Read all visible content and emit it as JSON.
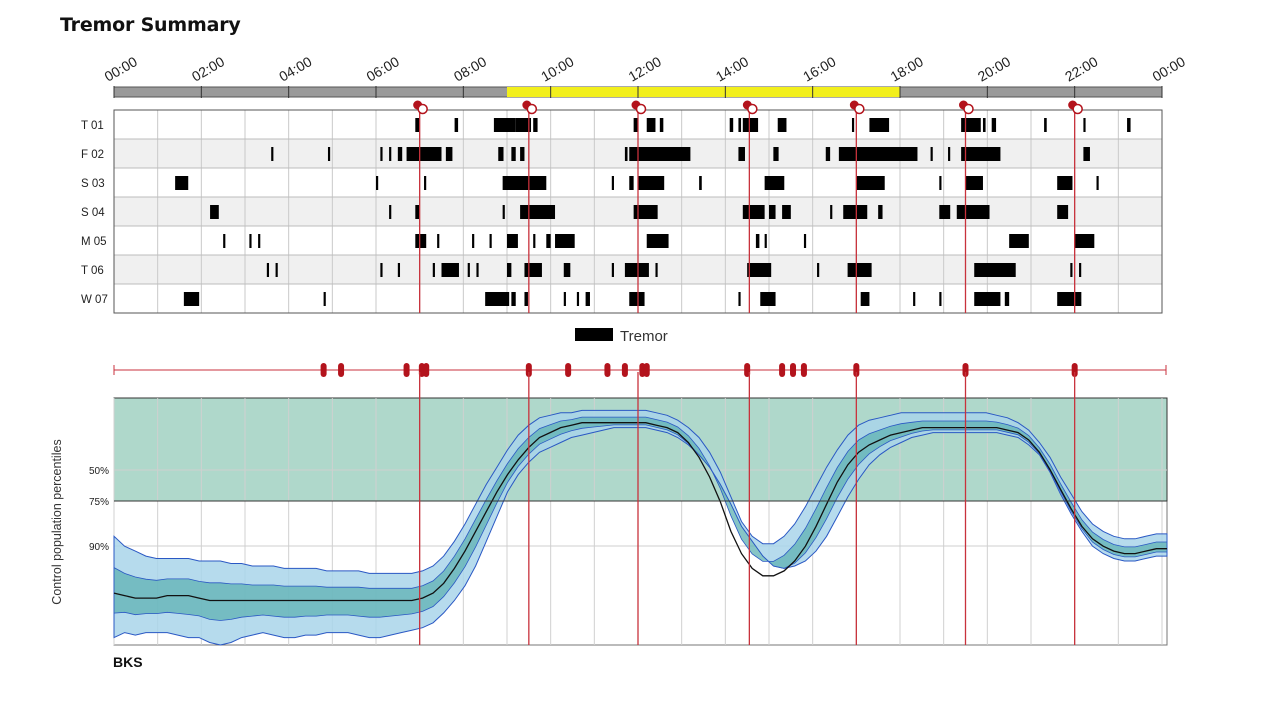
{
  "page": {
    "title": "Tremor Summary"
  },
  "colors": {
    "tremor": "#000000",
    "event_line": "#c8323c",
    "event_marker": "#b3131c",
    "daytime_bar": "#f2ef1c",
    "night_bar": "#9a9a9a",
    "row_alt": "#f0f0f0",
    "control_band": "#6db8a0",
    "patient_outer": "#a9d5ea",
    "patient_inner": "#5fb1b3",
    "patient_edge": "#2a58c4",
    "median_line": "#111111"
  },
  "chart_data": [
    {
      "type": "event-timeline",
      "title": "Tremor Summary",
      "time_ticks": [
        "00:00",
        "02:00",
        "04:00",
        "06:00",
        "08:00",
        "10:00",
        "12:00",
        "14:00",
        "16:00",
        "18:00",
        "20:00",
        "22:00",
        "00:00"
      ],
      "day_period": [
        9,
        18
      ],
      "dose_times": [
        7.0,
        9.5,
        12.0,
        14.55,
        17.0,
        19.5,
        22.0
      ],
      "legend": "Tremor",
      "rows": [
        {
          "label": "T 01",
          "events": [
            [
              6.9,
              0.1
            ],
            [
              7.8,
              0.08
            ],
            [
              8.7,
              0.5
            ],
            [
              9.2,
              0.35
            ],
            [
              9.6,
              0.1
            ],
            [
              11.9,
              0.1
            ],
            [
              12.2,
              0.2
            ],
            [
              12.5,
              0.08
            ],
            [
              14.1,
              0.08
            ],
            [
              14.3,
              0.06
            ],
            [
              14.4,
              0.35
            ],
            [
              15.2,
              0.2
            ],
            [
              16.9,
              0.05
            ],
            [
              17.3,
              0.45
            ],
            [
              19.4,
              0.45
            ],
            [
              19.9,
              0.06
            ],
            [
              20.1,
              0.1
            ],
            [
              21.3,
              0.06
            ],
            [
              22.2,
              0.05
            ],
            [
              23.2,
              0.08
            ]
          ]
        },
        {
          "label": "F 02",
          "events": [
            [
              3.6,
              0.05
            ],
            [
              4.9,
              0.05
            ],
            [
              6.1,
              0.05
            ],
            [
              6.3,
              0.05
            ],
            [
              6.5,
              0.1
            ],
            [
              6.7,
              0.8
            ],
            [
              7.6,
              0.15
            ],
            [
              8.8,
              0.12
            ],
            [
              9.1,
              0.1
            ],
            [
              9.3,
              0.1
            ],
            [
              11.7,
              0.06
            ],
            [
              11.8,
              1.4
            ],
            [
              14.3,
              0.15
            ],
            [
              15.1,
              0.12
            ],
            [
              16.3,
              0.1
            ],
            [
              16.6,
              1.75
            ],
            [
              18.3,
              0.1
            ],
            [
              18.7,
              0.05
            ],
            [
              19.1,
              0.05
            ],
            [
              19.4,
              0.9
            ],
            [
              22.2,
              0.15
            ]
          ]
        },
        {
          "label": "S 03",
          "events": [
            [
              1.4,
              0.3
            ],
            [
              6.0,
              0.05
            ],
            [
              7.1,
              0.05
            ],
            [
              8.9,
              1.0
            ],
            [
              11.4,
              0.05
            ],
            [
              11.8,
              0.1
            ],
            [
              12.0,
              0.6
            ],
            [
              13.4,
              0.06
            ],
            [
              14.9,
              0.45
            ],
            [
              17.0,
              0.65
            ],
            [
              18.9,
              0.05
            ],
            [
              19.5,
              0.4
            ],
            [
              21.6,
              0.35
            ],
            [
              22.5,
              0.05
            ]
          ]
        },
        {
          "label": "S 04",
          "events": [
            [
              2.2,
              0.2
            ],
            [
              6.3,
              0.05
            ],
            [
              6.9,
              0.1
            ],
            [
              8.9,
              0.05
            ],
            [
              9.3,
              0.8
            ],
            [
              11.9,
              0.55
            ],
            [
              14.4,
              0.5
            ],
            [
              15.0,
              0.15
            ],
            [
              15.3,
              0.2
            ],
            [
              16.4,
              0.05
            ],
            [
              16.7,
              0.55
            ],
            [
              17.5,
              0.1
            ],
            [
              18.9,
              0.25
            ],
            [
              19.3,
              0.75
            ],
            [
              21.6,
              0.25
            ]
          ]
        },
        {
          "label": "M 05",
          "events": [
            [
              2.5,
              0.05
            ],
            [
              3.1,
              0.05
            ],
            [
              3.3,
              0.05
            ],
            [
              6.9,
              0.25
            ],
            [
              7.4,
              0.05
            ],
            [
              8.2,
              0.05
            ],
            [
              8.6,
              0.05
            ],
            [
              9.0,
              0.25
            ],
            [
              9.6,
              0.05
            ],
            [
              9.9,
              0.1
            ],
            [
              10.1,
              0.45
            ],
            [
              12.2,
              0.5
            ],
            [
              14.7,
              0.08
            ],
            [
              14.9,
              0.05
            ],
            [
              15.8,
              0.05
            ],
            [
              20.5,
              0.45
            ],
            [
              22.0,
              0.45
            ]
          ]
        },
        {
          "label": "T 06",
          "events": [
            [
              3.5,
              0.05
            ],
            [
              3.7,
              0.05
            ],
            [
              6.1,
              0.05
            ],
            [
              6.5,
              0.05
            ],
            [
              7.3,
              0.05
            ],
            [
              7.5,
              0.4
            ],
            [
              8.1,
              0.05
            ],
            [
              8.3,
              0.05
            ],
            [
              9.0,
              0.1
            ],
            [
              9.4,
              0.4
            ],
            [
              10.3,
              0.15
            ],
            [
              11.4,
              0.05
            ],
            [
              11.7,
              0.55
            ],
            [
              12.4,
              0.05
            ],
            [
              14.5,
              0.55
            ],
            [
              16.1,
              0.05
            ],
            [
              16.8,
              0.55
            ],
            [
              19.7,
              0.95
            ],
            [
              21.9,
              0.05
            ],
            [
              22.1,
              0.05
            ]
          ]
        },
        {
          "label": "W 07",
          "events": [
            [
              1.6,
              0.35
            ],
            [
              4.8,
              0.05
            ],
            [
              8.5,
              0.55
            ],
            [
              9.1,
              0.1
            ],
            [
              9.4,
              0.08
            ],
            [
              10.3,
              0.05
            ],
            [
              10.6,
              0.05
            ],
            [
              10.8,
              0.1
            ],
            [
              11.8,
              0.35
            ],
            [
              14.3,
              0.05
            ],
            [
              14.8,
              0.35
            ],
            [
              17.1,
              0.2
            ],
            [
              18.3,
              0.05
            ],
            [
              18.9,
              0.05
            ],
            [
              19.7,
              0.6
            ],
            [
              20.4,
              0.1
            ],
            [
              21.6,
              0.55
            ],
            [
              22.0,
              0.15
            ]
          ]
        }
      ],
      "markers": [
        4.8,
        5.2,
        6.7,
        7.05,
        7.15,
        9.5,
        10.4,
        11.3,
        11.7,
        12.1,
        12.2,
        14.5,
        15.3,
        15.55,
        15.8,
        17.0,
        19.5,
        22.0
      ]
    },
    {
      "type": "area",
      "ylabel": "Control population percentiles",
      "y_ticks": [
        "50%",
        "75%",
        "90%"
      ],
      "footer": "BKS",
      "control_band": [
        50,
        75
      ],
      "series": [
        {
          "name": "patient_p90",
          "values": [
            0.97,
            0.95,
            0.96,
            0.95,
            0.95,
            0.95,
            0.96,
            0.97,
            0.97,
            0.99,
            1.0,
            0.99,
            0.97,
            0.96,
            0.95,
            0.96,
            0.97,
            0.97,
            0.96,
            0.96,
            0.95,
            0.95,
            0.95,
            0.96,
            0.97,
            0.97,
            0.96,
            0.95,
            0.94,
            0.93,
            0.91,
            0.87,
            0.82,
            0.76,
            0.68,
            0.58,
            0.48,
            0.38,
            0.31,
            0.26,
            0.22,
            0.2,
            0.18,
            0.16,
            0.15,
            0.14,
            0.13,
            0.12,
            0.12,
            0.12,
            0.12,
            0.13,
            0.14,
            0.16,
            0.19,
            0.23,
            0.28,
            0.35,
            0.43,
            0.52,
            0.58,
            0.64,
            0.68,
            0.69,
            0.68,
            0.66,
            0.62,
            0.56,
            0.48,
            0.4,
            0.33,
            0.27,
            0.23,
            0.2,
            0.18,
            0.16,
            0.15,
            0.14,
            0.14,
            0.14,
            0.14,
            0.14,
            0.14,
            0.14,
            0.15,
            0.16,
            0.19,
            0.23,
            0.3,
            0.39,
            0.47,
            0.54,
            0.6,
            0.63,
            0.65,
            0.66,
            0.66,
            0.65,
            0.64,
            0.64
          ]
        },
        {
          "name": "patient_p50",
          "values": [
            0.79,
            0.8,
            0.81,
            0.81,
            0.81,
            0.8,
            0.8,
            0.8,
            0.81,
            0.82,
            0.82,
            0.82,
            0.82,
            0.82,
            0.82,
            0.82,
            0.82,
            0.82,
            0.82,
            0.82,
            0.82,
            0.82,
            0.82,
            0.82,
            0.82,
            0.82,
            0.82,
            0.82,
            0.82,
            0.81,
            0.79,
            0.75,
            0.69,
            0.62,
            0.54,
            0.46,
            0.38,
            0.31,
            0.25,
            0.2,
            0.16,
            0.14,
            0.12,
            0.11,
            0.1,
            0.1,
            0.1,
            0.1,
            0.1,
            0.1,
            0.1,
            0.11,
            0.12,
            0.14,
            0.18,
            0.24,
            0.32,
            0.42,
            0.54,
            0.63,
            0.69,
            0.72,
            0.72,
            0.7,
            0.66,
            0.6,
            0.52,
            0.43,
            0.34,
            0.27,
            0.22,
            0.19,
            0.17,
            0.15,
            0.14,
            0.13,
            0.12,
            0.12,
            0.12,
            0.12,
            0.12,
            0.12,
            0.12,
            0.12,
            0.13,
            0.14,
            0.17,
            0.22,
            0.29,
            0.37,
            0.45,
            0.52,
            0.57,
            0.6,
            0.62,
            0.63,
            0.63,
            0.62,
            0.61,
            0.61
          ]
        },
        {
          "name": "patient_p10",
          "values": [
            0.56,
            0.6,
            0.62,
            0.64,
            0.65,
            0.65,
            0.65,
            0.65,
            0.66,
            0.66,
            0.66,
            0.67,
            0.67,
            0.68,
            0.68,
            0.68,
            0.69,
            0.69,
            0.69,
            0.69,
            0.7,
            0.7,
            0.7,
            0.7,
            0.71,
            0.71,
            0.71,
            0.71,
            0.71,
            0.7,
            0.68,
            0.64,
            0.58,
            0.51,
            0.43,
            0.35,
            0.28,
            0.21,
            0.15,
            0.11,
            0.08,
            0.07,
            0.06,
            0.06,
            0.05,
            0.05,
            0.05,
            0.05,
            0.05,
            0.05,
            0.05,
            0.06,
            0.07,
            0.09,
            0.12,
            0.16,
            0.22,
            0.3,
            0.4,
            0.5,
            0.56,
            0.59,
            0.59,
            0.56,
            0.51,
            0.44,
            0.36,
            0.28,
            0.21,
            0.15,
            0.11,
            0.09,
            0.08,
            0.07,
            0.06,
            0.06,
            0.06,
            0.06,
            0.06,
            0.06,
            0.06,
            0.06,
            0.06,
            0.07,
            0.08,
            0.1,
            0.13,
            0.18,
            0.24,
            0.32,
            0.39,
            0.46,
            0.51,
            0.54,
            0.56,
            0.57,
            0.57,
            0.56,
            0.55,
            0.55
          ]
        }
      ]
    }
  ]
}
